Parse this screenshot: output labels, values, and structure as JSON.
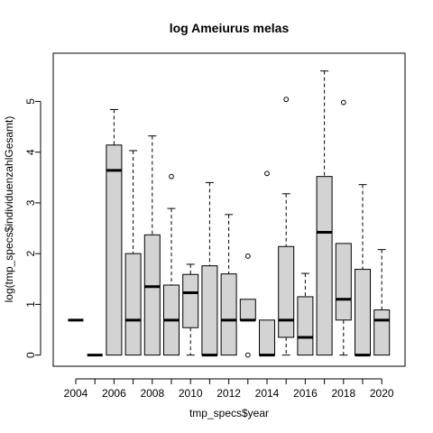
{
  "chart_data": {
    "type": "boxplot",
    "title": "log Ameiurus melas",
    "xlabel": "tmp_specs$year",
    "ylabel": "log(tmp_specs$individuenzahlGesamt)",
    "ylim": [
      -0.22,
      5.95
    ],
    "yticks": [
      0,
      1,
      2,
      3,
      4,
      5
    ],
    "x_tick_labels": [
      "2004",
      "2006",
      "2008",
      "2010",
      "2012",
      "2014",
      "2016",
      "2018",
      "2020"
    ],
    "grid": false,
    "box_color": "#d3d3d3",
    "categories": [
      "2004",
      "2005",
      "2006",
      "2007",
      "2008",
      "2009",
      "2010",
      "2011",
      "2012",
      "2013",
      "2014",
      "2015",
      "2016",
      "2017",
      "2018",
      "2019",
      "2020"
    ],
    "boxes": [
      {
        "year": "2004",
        "whisker_low": 0.69,
        "q1": 0.69,
        "median": 0.69,
        "q3": 0.69,
        "whisker_high": 0.69,
        "outliers": []
      },
      {
        "year": "2005",
        "whisker_low": 0.0,
        "q1": 0.0,
        "median": 0.0,
        "q3": 0.0,
        "whisker_high": 0.0,
        "outliers": []
      },
      {
        "year": "2006",
        "whisker_low": 0.0,
        "q1": 0.0,
        "median": 3.64,
        "q3": 4.14,
        "whisker_high": 4.84,
        "outliers": []
      },
      {
        "year": "2007",
        "whisker_low": 0.0,
        "q1": 0.0,
        "median": 0.69,
        "q3": 2.0,
        "whisker_high": 4.03,
        "outliers": []
      },
      {
        "year": "2008",
        "whisker_low": 0.0,
        "q1": 0.0,
        "median": 1.35,
        "q3": 2.37,
        "whisker_high": 4.32,
        "outliers": []
      },
      {
        "year": "2009",
        "whisker_low": 0.0,
        "q1": 0.0,
        "median": 0.69,
        "q3": 1.38,
        "whisker_high": 2.89,
        "outliers": [
          3.52
        ]
      },
      {
        "year": "2010",
        "whisker_low": 0.0,
        "q1": 0.54,
        "median": 1.23,
        "q3": 1.59,
        "whisker_high": 1.79,
        "outliers": []
      },
      {
        "year": "2011",
        "whisker_low": 0.0,
        "q1": 0.0,
        "median": 0.0,
        "q3": 1.76,
        "whisker_high": 3.4,
        "outliers": []
      },
      {
        "year": "2012",
        "whisker_low": 0.0,
        "q1": 0.0,
        "median": 0.69,
        "q3": 1.6,
        "whisker_high": 2.77,
        "outliers": []
      },
      {
        "year": "2013",
        "whisker_low": 0.69,
        "q1": 0.69,
        "median": 0.69,
        "q3": 1.1,
        "whisker_high": 1.1,
        "outliers": [
          1.95,
          0.0
        ]
      },
      {
        "year": "2014",
        "whisker_low": 0.0,
        "q1": 0.0,
        "median": 0.0,
        "q3": 0.69,
        "whisker_high": 0.69,
        "outliers": [
          3.58
        ]
      },
      {
        "year": "2015",
        "whisker_low": 0.0,
        "q1": 0.35,
        "median": 0.69,
        "q3": 2.14,
        "whisker_high": 3.18,
        "outliers": [
          5.04
        ]
      },
      {
        "year": "2016",
        "whisker_low": 0.0,
        "q1": 0.0,
        "median": 0.35,
        "q3": 1.15,
        "whisker_high": 1.61,
        "outliers": []
      },
      {
        "year": "2017",
        "whisker_low": 0.0,
        "q1": 0.0,
        "median": 2.42,
        "q3": 3.52,
        "whisker_high": 5.6,
        "outliers": []
      },
      {
        "year": "2018",
        "whisker_low": 0.0,
        "q1": 0.69,
        "median": 1.1,
        "q3": 2.2,
        "whisker_high": 2.2,
        "outliers": [
          4.98
        ]
      },
      {
        "year": "2019",
        "whisker_low": 0.0,
        "q1": 0.0,
        "median": 0.0,
        "q3": 1.69,
        "whisker_high": 3.36,
        "outliers": []
      },
      {
        "year": "2020",
        "whisker_low": 0.0,
        "q1": 0.0,
        "median": 0.69,
        "q3": 0.89,
        "whisker_high": 2.08,
        "outliers": []
      }
    ]
  }
}
